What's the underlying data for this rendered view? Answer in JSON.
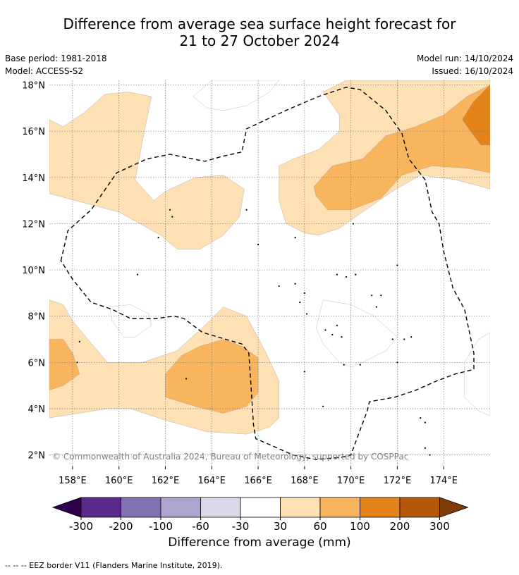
{
  "header": {
    "title_line1": "Difference from average sea surface height forecast for",
    "title_line2": "21 to 27 October 2024",
    "base_period": "Base period: 1981-2018",
    "model": "Model: ACCESS-S2",
    "model_run": "Model run: 14/10/2024",
    "issued": "Issued: 16/10/2024"
  },
  "chart_data": {
    "type": "contour-map",
    "lon_range": [
      157,
      176
    ],
    "lat_range": [
      1.5,
      18.2
    ],
    "lon_ticks": [
      158,
      160,
      162,
      164,
      166,
      168,
      170,
      172,
      174
    ],
    "lon_tick_labels": [
      "158°E",
      "160°E",
      "162°E",
      "164°E",
      "166°E",
      "168°E",
      "170°E",
      "172°E",
      "174°E"
    ],
    "lat_ticks": [
      2,
      4,
      6,
      8,
      10,
      12,
      14,
      16,
      18
    ],
    "lat_tick_labels": [
      "2°N",
      "4°N",
      "6°N",
      "8°N",
      "10°N",
      "12°N",
      "14°N",
      "16°N",
      "18°N"
    ],
    "grid": true,
    "colorbar": {
      "label": "Difference from average (mm)",
      "boundaries": [
        -300,
        -200,
        -100,
        -60,
        -30,
        30,
        60,
        100,
        200,
        300
      ],
      "tick_labels": [
        "-300",
        "-200",
        "-100",
        "-60",
        "-30",
        "30",
        "60",
        "100",
        "200",
        "300"
      ],
      "colors": [
        "#5a2a8a",
        "#8270b0",
        "#ada5d0",
        "#d8d8ea",
        "#ffffff",
        "#fde0b4",
        "#f9b55e",
        "#e2841a",
        "#b35808"
      ],
      "under_color": "#2d004b",
      "over_color": "#7f3b08",
      "extend": "both"
    },
    "regions": [
      {
        "name": "pos-30-west-north",
        "bin": 30,
        "points": [
          [
            157,
            16.5
          ],
          [
            157.6,
            16.2
          ],
          [
            158.5,
            16.8
          ],
          [
            159.4,
            17.6
          ],
          [
            160.4,
            17.7
          ],
          [
            161.4,
            17.5
          ],
          [
            161.0,
            15.5
          ],
          [
            160.7,
            13.9
          ],
          [
            161.5,
            13.0
          ],
          [
            162.0,
            13.4
          ],
          [
            163.3,
            14.0
          ],
          [
            164.5,
            14.1
          ],
          [
            165.4,
            13.5
          ],
          [
            165.2,
            12.3
          ],
          [
            164.5,
            11.5
          ],
          [
            163.5,
            10.9
          ],
          [
            162.5,
            10.9
          ],
          [
            161.8,
            11.5
          ],
          [
            160.0,
            12.5
          ],
          [
            157,
            13.3
          ]
        ]
      },
      {
        "name": "pos-30-east-north",
        "bin": 30,
        "points": [
          [
            168.8,
            17.7
          ],
          [
            169.8,
            18.2
          ],
          [
            176,
            18.2
          ],
          [
            176,
            13.5
          ],
          [
            174.5,
            13.9
          ],
          [
            173.0,
            14.1
          ],
          [
            171.8,
            13.4
          ],
          [
            170.5,
            12.5
          ],
          [
            169.5,
            11.8
          ],
          [
            168.6,
            11.5
          ],
          [
            168.0,
            11.6
          ],
          [
            167.2,
            12.0
          ],
          [
            166.9,
            13.0
          ],
          [
            166.9,
            14.5
          ],
          [
            167.5,
            14.8
          ],
          [
            168.6,
            15.2
          ],
          [
            169.5,
            16.0
          ],
          [
            169.5,
            16.7
          ]
        ]
      },
      {
        "name": "pos-60-east-north",
        "bin": 60,
        "points": [
          [
            168.4,
            13.6
          ],
          [
            169.2,
            14.5
          ],
          [
            170.5,
            14.8
          ],
          [
            171.5,
            15.8
          ],
          [
            172.8,
            16.2
          ],
          [
            174.0,
            16.7
          ],
          [
            175.0,
            17.5
          ],
          [
            176,
            18.0
          ],
          [
            176,
            14.2
          ],
          [
            175.0,
            14.4
          ],
          [
            173.5,
            14.5
          ],
          [
            172.2,
            14.1
          ],
          [
            171.3,
            13.1
          ],
          [
            170.0,
            12.6
          ],
          [
            169.0,
            12.6
          ],
          [
            168.5,
            13.2
          ]
        ]
      },
      {
        "name": "pos-100-east-north",
        "bin": 100,
        "points": [
          [
            174.8,
            16.5
          ],
          [
            175.3,
            17.3
          ],
          [
            176,
            18.0
          ],
          [
            176,
            15.4
          ],
          [
            175.6,
            15.4
          ]
        ]
      },
      {
        "name": "pos-30-south",
        "bin": 30,
        "points": [
          [
            157,
            8.7
          ],
          [
            157.6,
            8.5
          ],
          [
            158.0,
            7.8
          ],
          [
            159.5,
            6.0
          ],
          [
            161.0,
            6.0
          ],
          [
            162.5,
            6.5
          ],
          [
            163.8,
            7.7
          ],
          [
            164.5,
            8.4
          ],
          [
            165.5,
            8.0
          ],
          [
            166.3,
            6.5
          ],
          [
            166.9,
            5.2
          ],
          [
            166.9,
            3.6
          ],
          [
            166.5,
            3.2
          ],
          [
            165.5,
            2.9
          ],
          [
            163.8,
            3.0
          ],
          [
            162.0,
            3.5
          ],
          [
            160.5,
            4.0
          ],
          [
            159.5,
            4.0
          ],
          [
            157,
            3.6
          ]
        ]
      },
      {
        "name": "pos-60-south-west",
        "bin": 60,
        "points": [
          [
            157,
            7.0
          ],
          [
            157.6,
            7.0
          ],
          [
            158.0,
            6.4
          ],
          [
            158.3,
            5.5
          ],
          [
            157.6,
            5.0
          ],
          [
            157,
            4.8
          ]
        ]
      },
      {
        "name": "pos-60-south-mid",
        "bin": 60,
        "points": [
          [
            162.0,
            5.5
          ],
          [
            162.7,
            6.3
          ],
          [
            163.5,
            6.7
          ],
          [
            164.5,
            7.0
          ],
          [
            165.3,
            6.7
          ],
          [
            166.0,
            6.2
          ],
          [
            166.0,
            4.7
          ],
          [
            165.5,
            4.1
          ],
          [
            164.5,
            3.8
          ],
          [
            163.3,
            4.1
          ],
          [
            162.0,
            4.5
          ]
        ]
      },
      {
        "name": "neg-30-top",
        "bin": -30,
        "points": [
          [
            163.2,
            17.5
          ],
          [
            164.0,
            18.2
          ],
          [
            166.9,
            18.2
          ],
          [
            166.5,
            17.7
          ],
          [
            165.5,
            17.1
          ],
          [
            164.5,
            16.9
          ],
          [
            163.8,
            17.0
          ]
        ]
      },
      {
        "name": "neg-30-left",
        "bin": -30,
        "points": [
          [
            159.6,
            8.4
          ],
          [
            160.5,
            8.5
          ],
          [
            161.3,
            8.1
          ],
          [
            161.4,
            7.6
          ],
          [
            160.7,
            7.1
          ],
          [
            160.2,
            7.1
          ],
          [
            159.7,
            7.8
          ]
        ]
      },
      {
        "name": "neg-30-center",
        "bin": -30,
        "points": [
          [
            168.8,
            8.7
          ],
          [
            170.0,
            8.5
          ],
          [
            171.0,
            8.0
          ],
          [
            172.0,
            7.1
          ],
          [
            171.5,
            6.5
          ],
          [
            170.5,
            6.0
          ],
          [
            170.0,
            5.8
          ],
          [
            169.5,
            6.0
          ],
          [
            168.8,
            6.8
          ],
          [
            168.5,
            7.5
          ]
        ]
      },
      {
        "name": "neg-30-east",
        "bin": -30,
        "points": [
          [
            176,
            7.3
          ],
          [
            175.5,
            7.0
          ],
          [
            174.9,
            6.0
          ],
          [
            174.9,
            4.5
          ],
          [
            175.5,
            3.9
          ],
          [
            176,
            3.7
          ]
        ]
      }
    ],
    "eez_border": [
      [
        157.5,
        10.4
      ],
      [
        157.8,
        11.7
      ],
      [
        158.8,
        12.6
      ],
      [
        159.9,
        14.2
      ],
      [
        161.2,
        14.8
      ],
      [
        162.2,
        15.0
      ],
      [
        163.7,
        14.7
      ],
      [
        164.4,
        14.9
      ],
      [
        165.3,
        15.1
      ],
      [
        165.5,
        16.1
      ],
      [
        167.2,
        16.9
      ],
      [
        168.6,
        17.5
      ],
      [
        169.8,
        17.9
      ],
      [
        170.4,
        17.8
      ],
      [
        171.5,
        16.9
      ],
      [
        172.2,
        15.9
      ],
      [
        172.5,
        14.8
      ],
      [
        173.2,
        13.9
      ],
      [
        173.5,
        12.5
      ],
      [
        173.8,
        12.0
      ],
      [
        174.0,
        10.8
      ],
      [
        174.4,
        9.2
      ],
      [
        174.9,
        8.3
      ],
      [
        175.3,
        6.4
      ],
      [
        175.3,
        5.7
      ],
      [
        174.5,
        5.5
      ],
      [
        173.7,
        5.2
      ],
      [
        172.8,
        4.8
      ],
      [
        171.9,
        4.5
      ],
      [
        170.8,
        4.3
      ],
      [
        170.7,
        3.9
      ],
      [
        170.0,
        2.0
      ],
      [
        169.6,
        1.9
      ],
      [
        168.5,
        1.8
      ],
      [
        167.5,
        2.0
      ],
      [
        166.6,
        2.4
      ],
      [
        165.9,
        2.7
      ],
      [
        165.8,
        3.3
      ],
      [
        165.6,
        6.4
      ],
      [
        165.3,
        6.8
      ],
      [
        164.6,
        7.0
      ],
      [
        163.6,
        7.3
      ],
      [
        162.8,
        7.9
      ],
      [
        162.4,
        8.0
      ],
      [
        161.6,
        7.9
      ],
      [
        160.5,
        7.9
      ],
      [
        159.7,
        8.3
      ],
      [
        158.8,
        8.6
      ],
      [
        158.0,
        9.6
      ]
    ],
    "islands": [
      [
        158.3,
        6.9
      ],
      [
        158.2,
        6.0
      ],
      [
        160.8,
        9.8
      ],
      [
        161.7,
        11.4
      ],
      [
        162.2,
        12.6
      ],
      [
        162.3,
        12.3
      ],
      [
        162.9,
        5.3
      ],
      [
        165.5,
        12.6
      ],
      [
        166.0,
        11.1
      ],
      [
        166.9,
        9.3
      ],
      [
        167.6,
        9.4
      ],
      [
        167.6,
        11.4
      ],
      [
        167.8,
        8.6
      ],
      [
        168.0,
        9.0
      ],
      [
        168.1,
        8.1
      ],
      [
        168.0,
        5.6
      ],
      [
        168.9,
        7.4
      ],
      [
        169.2,
        7.2
      ],
      [
        169.4,
        7.6
      ],
      [
        169.6,
        7.1
      ],
      [
        169.4,
        9.8
      ],
      [
        169.8,
        9.7
      ],
      [
        170.2,
        9.8
      ],
      [
        170.1,
        12.0
      ],
      [
        170.4,
        5.9
      ],
      [
        169.7,
        5.9
      ],
      [
        168.8,
        4.1
      ],
      [
        170.9,
        8.9
      ],
      [
        171.1,
        8.4
      ],
      [
        171.3,
        8.9
      ],
      [
        171.8,
        7.0
      ],
      [
        172.0,
        6.0
      ],
      [
        172.3,
        7.0
      ],
      [
        172.0,
        10.2
      ],
      [
        172.6,
        7.1
      ],
      [
        173.0,
        3.6
      ],
      [
        173.2,
        3.4
      ],
      [
        173.2,
        2.3
      ],
      [
        173.4,
        2.0
      ]
    ],
    "attribution": "© Commonwealth of Australia 2024, Bureau of Meteorology, supported by COSPPac"
  },
  "footer": {
    "legend_text": "--  --  -- EEZ border V11 (Flanders Marine Institute, 2019)."
  }
}
